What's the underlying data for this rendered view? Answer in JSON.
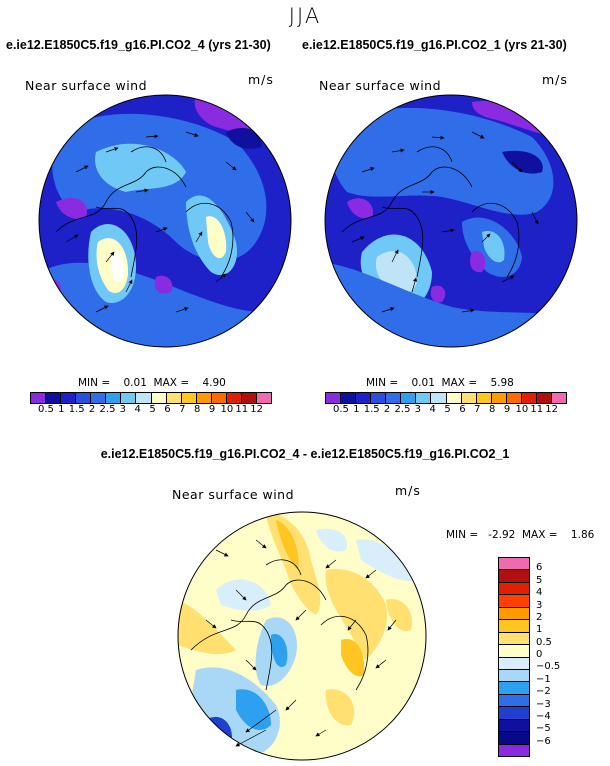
{
  "season": "JJA",
  "panels": [
    {
      "title": "e.ie12.E1850C5.f19_g16.PI.CO2_4 (yrs 21-30)",
      "variable": "Near surface wind",
      "units": "m/s",
      "stats": "MIN =    0.01  MAX =    4.90"
    },
    {
      "title": "e.ie12.E1850C5.f19_g16.PI.CO2_1 (yrs 21-30)",
      "variable": "Near surface wind",
      "units": "m/s",
      "stats": "MIN =    0.01  MAX =    5.98"
    }
  ],
  "diff": {
    "title": "e.ie12.E1850C5.f19_g16.PI.CO2_4 - e.ie12.E1850C5.f19_g16.PI.CO2_1",
    "variable": "Near surface wind",
    "units": "m/s",
    "stats": "MIN =   -2.92  MAX =    1.86"
  },
  "colorbar_top": {
    "labels": [
      "0.5",
      "1",
      "1.5",
      "2",
      "2.5",
      "3",
      "4",
      "5",
      "6",
      "7",
      "8",
      "9",
      "10",
      "11",
      "12"
    ],
    "colors": [
      "#8a2be2",
      "#1010a0",
      "#1e20c8",
      "#2a4ee0",
      "#2f6ee8",
      "#2ea0f0",
      "#6fc8f5",
      "#bfe4f7",
      "#fffdc8",
      "#ffe070",
      "#ffc520",
      "#ff9a00",
      "#ff6a00",
      "#e02000",
      "#b01010",
      "#f06ab0"
    ]
  },
  "colorbar_diff": {
    "labels": [
      "6",
      "5",
      "4",
      "3",
      "2",
      "1",
      "0.5",
      "0",
      "−0.5",
      "−1",
      "−2",
      "−3",
      "−4",
      "−5",
      "−6"
    ],
    "colors": [
      "#f06ab0",
      "#b01010",
      "#e02000",
      "#ff4000",
      "#ff9a00",
      "#ffc520",
      "#ffe070",
      "#fffdc8",
      "#d8eefa",
      "#a8d8f5",
      "#2ea0f0",
      "#2f6ee8",
      "#1e3fd0",
      "#1010a0",
      "#08088a",
      "#8a2be2"
    ]
  }
}
